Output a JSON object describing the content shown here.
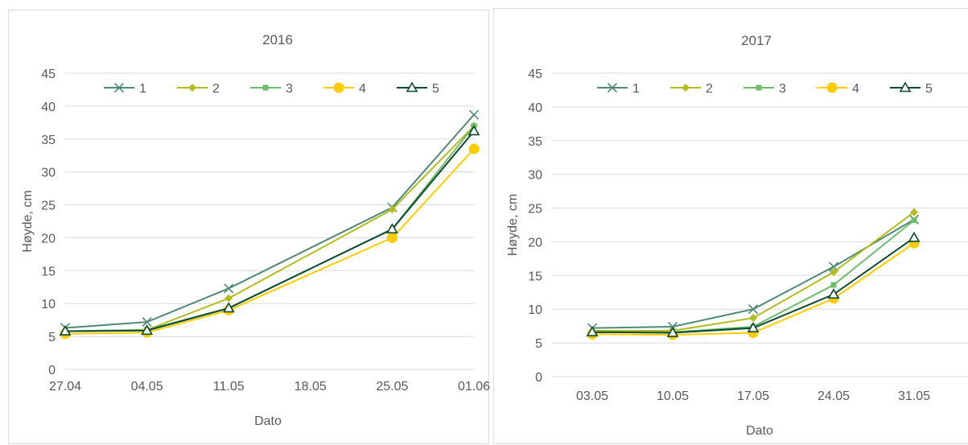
{
  "chart_data": [
    {
      "type": "line",
      "title": "2016",
      "xlabel": "Dato",
      "ylabel": "Høyde, cm",
      "ylim": [
        0,
        45
      ],
      "yticks": [
        0,
        5,
        10,
        15,
        20,
        25,
        30,
        35,
        40,
        45
      ],
      "categories": [
        "27.04",
        "04.05",
        "11.05",
        "18.05",
        "25.05",
        "01.06"
      ],
      "grid": true,
      "legend": "top",
      "series": [
        {
          "name": "1",
          "color": "#4e8a74",
          "marker": "x",
          "values": [
            6.3,
            7.2,
            12.3,
            null,
            24.6,
            38.7
          ]
        },
        {
          "name": "2",
          "color": "#b4bd1f",
          "marker": "diamond",
          "values": [
            5.8,
            6.0,
            10.8,
            null,
            24.3,
            37.0
          ]
        },
        {
          "name": "3",
          "color": "#6dbd6b",
          "marker": "square",
          "values": [
            5.8,
            6.0,
            9.3,
            null,
            21.3,
            37.0
          ]
        },
        {
          "name": "4",
          "color": "#ffcc00",
          "marker": "circle",
          "values": [
            5.4,
            5.6,
            9.0,
            null,
            20.0,
            33.5
          ]
        },
        {
          "name": "5",
          "color": "#0b4a2e",
          "marker": "triangle",
          "values": [
            5.8,
            5.9,
            9.3,
            null,
            21.3,
            36.2
          ]
        }
      ]
    },
    {
      "type": "line",
      "title": "2017",
      "xlabel": "Dato",
      "ylabel": "Høyde, cm",
      "ylim": [
        0,
        45
      ],
      "yticks": [
        0,
        5,
        10,
        15,
        20,
        25,
        30,
        35,
        40,
        45
      ],
      "categories": [
        "03.05",
        "10.05",
        "17.05",
        "24.05",
        "31.05"
      ],
      "grid": true,
      "legend": "top",
      "series": [
        {
          "name": "1",
          "color": "#4e8a74",
          "marker": "x",
          "values": [
            7.2,
            7.4,
            10.0,
            16.3,
            23.3
          ]
        },
        {
          "name": "2",
          "color": "#b4bd1f",
          "marker": "diamond",
          "values": [
            6.8,
            6.8,
            8.7,
            15.5,
            24.4
          ]
        },
        {
          "name": "3",
          "color": "#6dbd6b",
          "marker": "square",
          "values": [
            6.6,
            6.6,
            7.4,
            13.6,
            23.2
          ]
        },
        {
          "name": "4",
          "color": "#ffcc00",
          "marker": "circle",
          "values": [
            6.3,
            6.2,
            6.5,
            11.6,
            19.8
          ]
        },
        {
          "name": "5",
          "color": "#0b4a2e",
          "marker": "triangle",
          "values": [
            6.6,
            6.5,
            7.2,
            12.2,
            20.6
          ]
        }
      ]
    }
  ]
}
